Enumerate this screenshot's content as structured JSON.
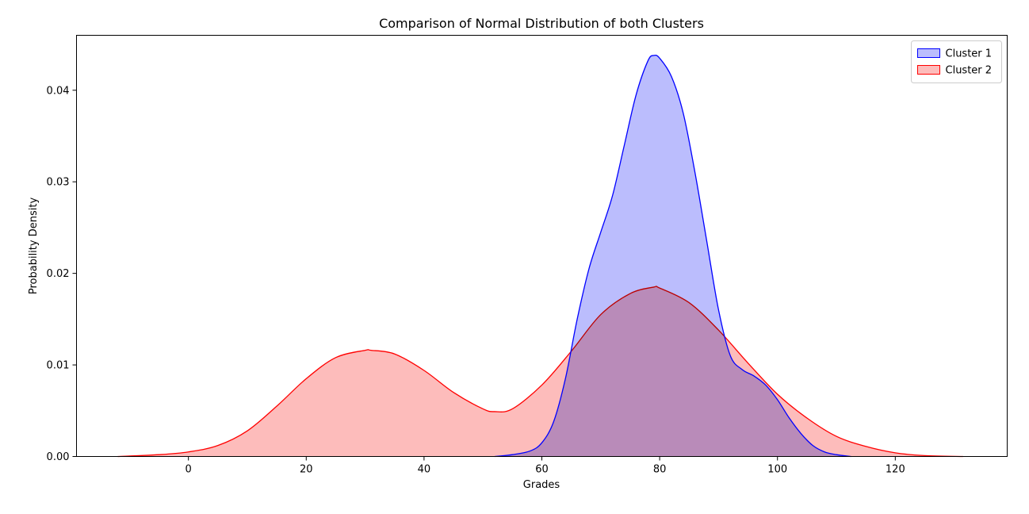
{
  "chart_data": {
    "type": "area",
    "title": "Comparison of Normal Distribution of both Clusters",
    "xlabel": "Grades",
    "ylabel": "Probability Density",
    "xlim": [
      -19,
      139
    ],
    "ylim": [
      0,
      0.046
    ],
    "xticks": [
      0,
      20,
      40,
      60,
      80,
      100,
      120
    ],
    "yticks": [
      0.0,
      0.01,
      0.02,
      0.03,
      0.04
    ],
    "ytick_labels": [
      "0.00",
      "0.01",
      "0.02",
      "0.03",
      "0.04"
    ],
    "grid": false,
    "legend": "top-right",
    "series": [
      {
        "name": "Cluster 1",
        "line_color": "#0000ff",
        "fill_color": "#bbbdfd",
        "x": [
          52,
          55,
          58,
          60,
          62,
          64,
          66,
          68,
          70,
          72,
          74,
          76,
          78,
          79,
          80,
          82,
          84,
          86,
          88,
          90,
          92,
          94,
          96,
          98,
          100,
          102,
          104,
          106,
          108,
          110,
          112.5
        ],
        "y": [
          0.0,
          0.0002,
          0.0006,
          0.0015,
          0.0038,
          0.0085,
          0.015,
          0.0205,
          0.0245,
          0.0285,
          0.034,
          0.0395,
          0.0432,
          0.0438,
          0.0435,
          0.0415,
          0.0375,
          0.031,
          0.0235,
          0.016,
          0.011,
          0.0095,
          0.0088,
          0.0078,
          0.0062,
          0.0042,
          0.0025,
          0.0012,
          0.0005,
          0.0002,
          0.0
        ]
      },
      {
        "name": "Cluster 2",
        "line_color": "#ff0000",
        "fill_color": "#fdbcbb",
        "x": [
          -12,
          -5,
          0,
          5,
          10,
          15,
          20,
          25,
          30,
          31,
          35,
          40,
          45,
          50,
          52,
          55,
          60,
          65,
          70,
          75,
          79,
          80,
          85,
          90,
          95,
          100,
          105,
          110,
          115,
          120,
          125,
          131.5
        ],
        "y": [
          0.0,
          0.0002,
          0.0005,
          0.0012,
          0.0028,
          0.0055,
          0.0085,
          0.0108,
          0.0116,
          0.0116,
          0.0112,
          0.0094,
          0.007,
          0.0052,
          0.0049,
          0.0052,
          0.0078,
          0.0115,
          0.0155,
          0.0178,
          0.0185,
          0.0184,
          0.0168,
          0.0138,
          0.0102,
          0.0068,
          0.0042,
          0.0022,
          0.0011,
          0.0004,
          0.0001,
          0.0
        ]
      }
    ]
  }
}
